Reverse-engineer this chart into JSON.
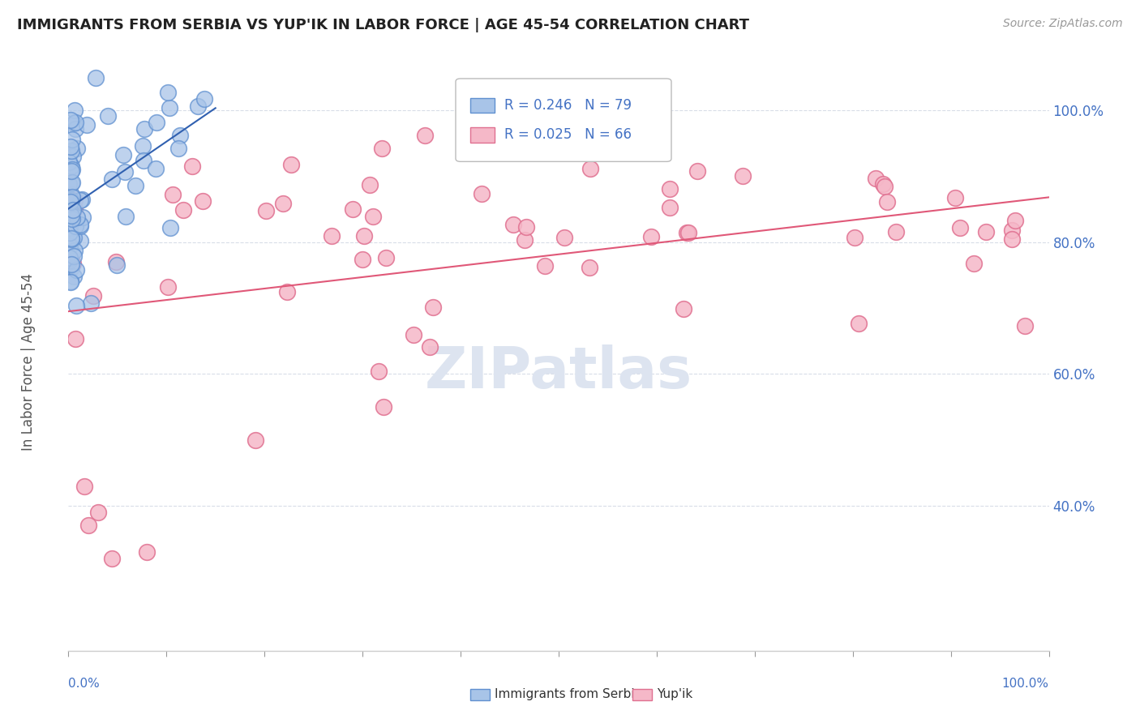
{
  "title": "IMMIGRANTS FROM SERBIA VS YUP'IK IN LABOR FORCE | AGE 45-54 CORRELATION CHART",
  "source": "Source: ZipAtlas.com",
  "ylabel": "In Labor Force | Age 45-54",
  "xlim": [
    0.0,
    1.0
  ],
  "ylim": [
    0.18,
    1.08
  ],
  "serbia_R": 0.246,
  "serbia_N": 79,
  "yupik_R": 0.025,
  "yupik_N": 66,
  "serbia_color": "#a8c4e8",
  "serbia_edge": "#6090d0",
  "yupik_color": "#f5b8c8",
  "yupik_edge": "#e07090",
  "serbia_line_color": "#3060b0",
  "yupik_line_color": "#e05878",
  "ytick_positions": [
    0.4,
    0.6,
    0.8,
    1.0
  ],
  "ytick_labels": [
    "40.0%",
    "60.0%",
    "80.0%",
    "100.0%"
  ],
  "grid_color": "#d8dde8",
  "background_color": "#ffffff",
  "watermark_color": "#dde4f0"
}
